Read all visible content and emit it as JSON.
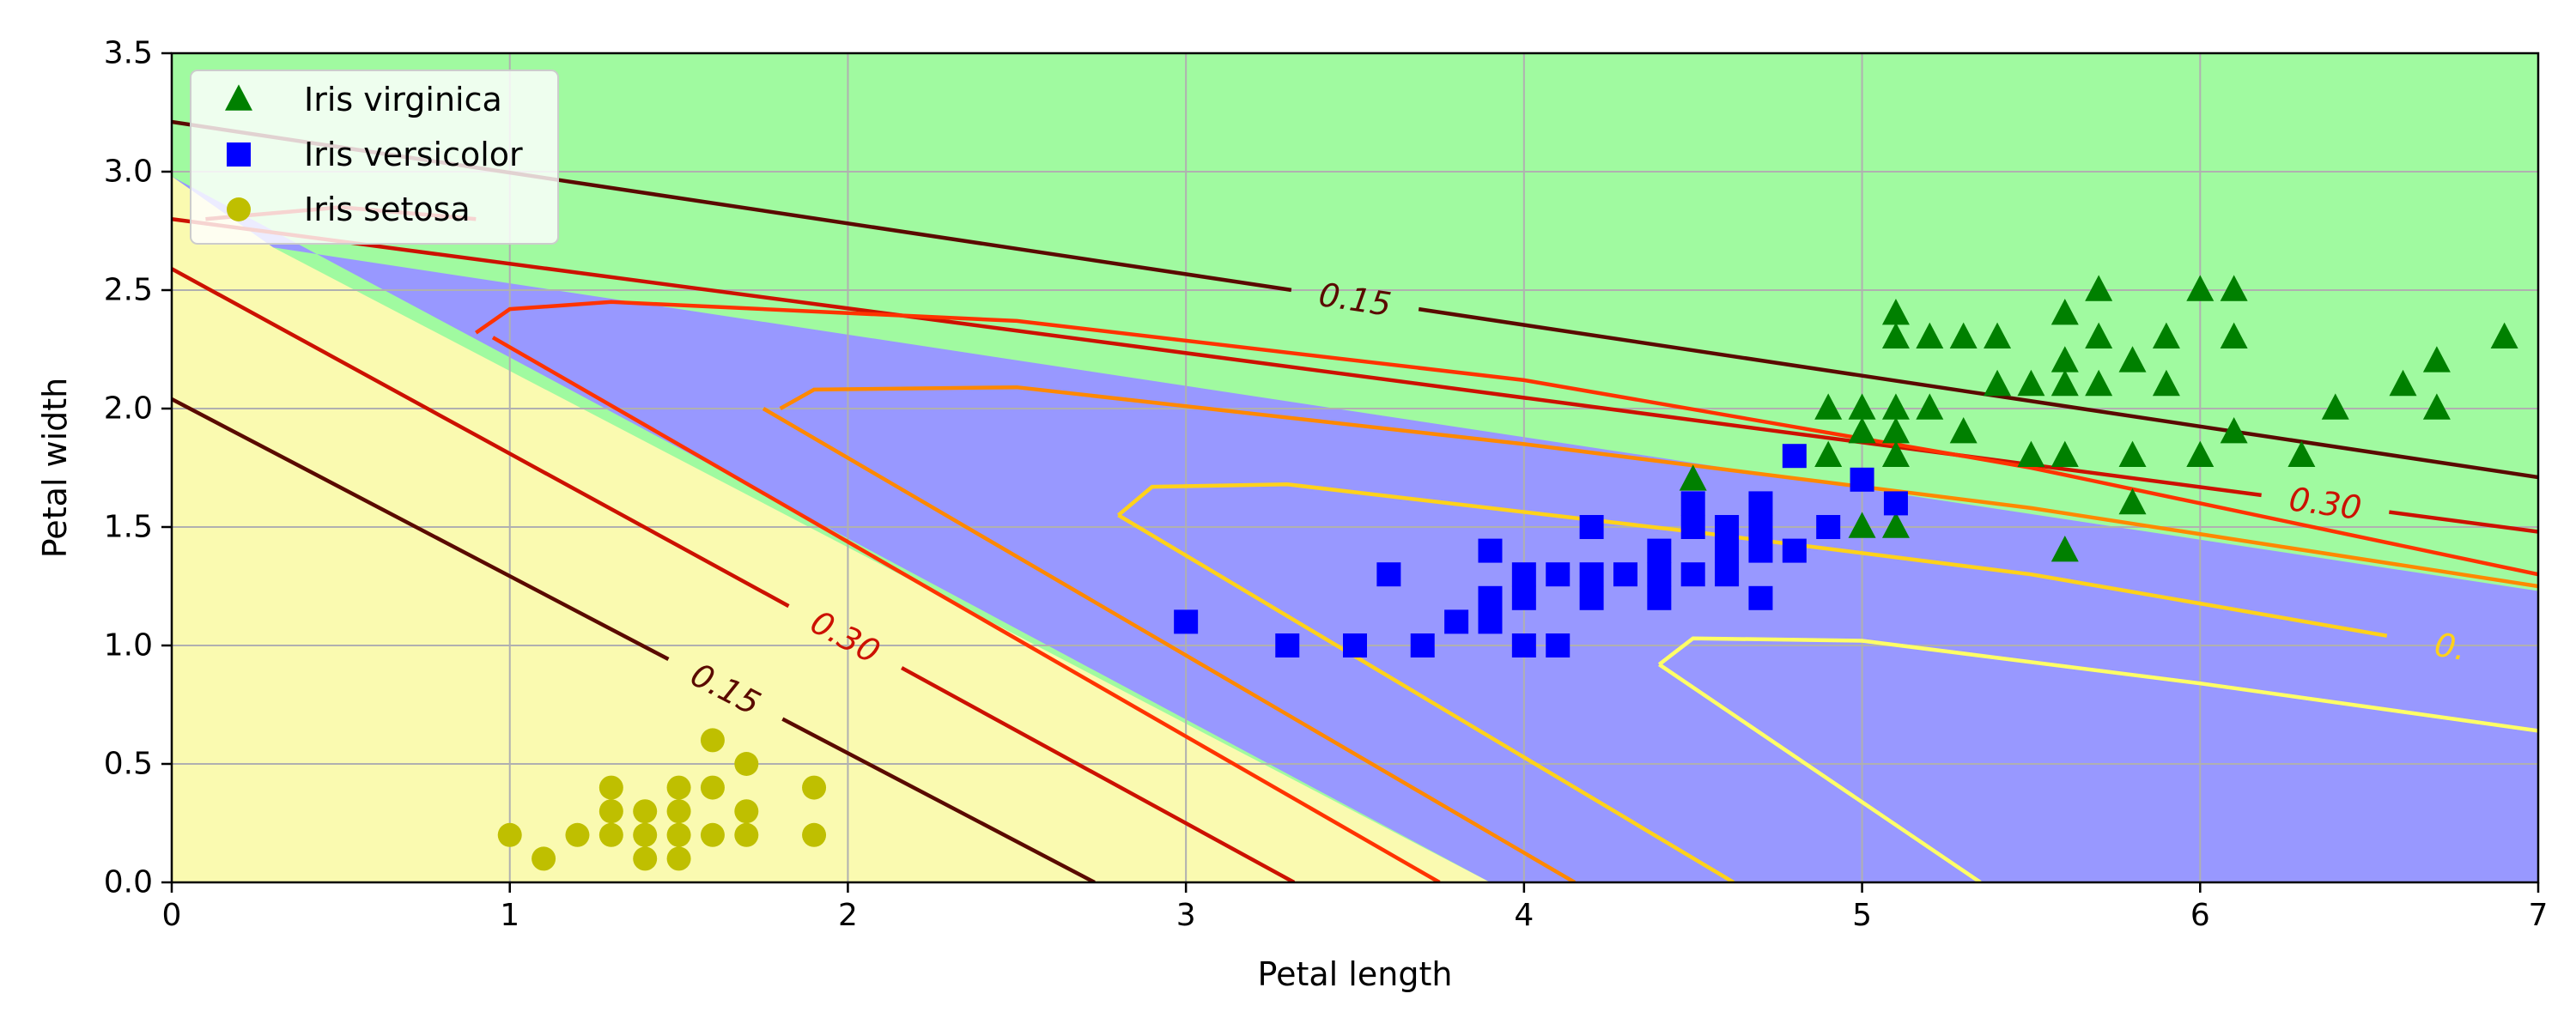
{
  "chart_data": {
    "type": "scatter",
    "title": "",
    "xlabel": "Petal length",
    "ylabel": "Petal width",
    "xlim": [
      0,
      7
    ],
    "ylim": [
      0,
      3.5
    ],
    "xticks": [
      0,
      1,
      2,
      3,
      4,
      5,
      6,
      7
    ],
    "yticks": [
      0.0,
      0.5,
      1.0,
      1.5,
      2.0,
      2.5,
      3.0,
      3.5
    ],
    "xtick_labels": [
      "0",
      "1",
      "2",
      "3",
      "4",
      "5",
      "6",
      "7"
    ],
    "ytick_labels": [
      "0.0",
      "0.5",
      "1.0",
      "1.5",
      "2.0",
      "2.5",
      "3.0",
      "3.5"
    ],
    "grid": true,
    "legend_position": "top-left",
    "regions": {
      "setosa_color": "#fafab0",
      "versicolor_color": "#9898ff",
      "virginica_color": "#a0faa0",
      "setosa_versicolor_boundary": [
        [
          0,
          2.98
        ],
        [
          0.3,
          2.68
        ],
        [
          3.9,
          0.0
        ]
      ],
      "versicolor_virginica_boundary": [
        [
          0.3,
          2.68
        ],
        [
          7,
          1.23
        ]
      ]
    },
    "series": [
      {
        "name": "Iris virginica",
        "marker": "triangle",
        "color": "#008000",
        "points": [
          [
            5.1,
            2.4
          ],
          [
            5.6,
            2.4
          ],
          [
            5.7,
            2.5
          ],
          [
            6.0,
            2.5
          ],
          [
            6.1,
            2.5
          ],
          [
            5.1,
            2.3
          ],
          [
            5.2,
            2.3
          ],
          [
            5.3,
            2.3
          ],
          [
            5.4,
            2.3
          ],
          [
            5.6,
            2.2
          ],
          [
            5.7,
            2.3
          ],
          [
            5.8,
            2.2
          ],
          [
            5.9,
            2.3
          ],
          [
            6.1,
            2.3
          ],
          [
            6.7,
            2.2
          ],
          [
            6.9,
            2.3
          ],
          [
            4.9,
            2.0
          ],
          [
            5.0,
            2.0
          ],
          [
            5.1,
            2.0
          ],
          [
            5.2,
            2.0
          ],
          [
            5.4,
            2.1
          ],
          [
            5.5,
            2.1
          ],
          [
            5.6,
            2.1
          ],
          [
            5.7,
            2.1
          ],
          [
            5.9,
            2.1
          ],
          [
            6.4,
            2.0
          ],
          [
            6.6,
            2.1
          ],
          [
            6.7,
            2.0
          ],
          [
            5.0,
            1.9
          ],
          [
            5.1,
            1.9
          ],
          [
            5.3,
            1.9
          ],
          [
            6.1,
            1.9
          ],
          [
            4.9,
            1.8
          ],
          [
            5.1,
            1.8
          ],
          [
            5.5,
            1.8
          ],
          [
            5.6,
            1.8
          ],
          [
            5.8,
            1.8
          ],
          [
            6.0,
            1.8
          ],
          [
            6.3,
            1.8
          ],
          [
            4.5,
            1.7
          ],
          [
            5.8,
            1.6
          ],
          [
            5.0,
            1.5
          ],
          [
            5.1,
            1.5
          ],
          [
            5.6,
            1.4
          ]
        ]
      },
      {
        "name": "Iris versicolor",
        "marker": "square",
        "color": "#0000ff",
        "points": [
          [
            4.8,
            1.8
          ],
          [
            5.0,
            1.7
          ],
          [
            4.5,
            1.6
          ],
          [
            4.7,
            1.6
          ],
          [
            5.1,
            1.6
          ],
          [
            4.5,
            1.5
          ],
          [
            4.6,
            1.5
          ],
          [
            4.7,
            1.5
          ],
          [
            4.9,
            1.5
          ],
          [
            4.2,
            1.5
          ],
          [
            3.9,
            1.4
          ],
          [
            4.4,
            1.4
          ],
          [
            4.6,
            1.4
          ],
          [
            4.7,
            1.4
          ],
          [
            4.8,
            1.4
          ],
          [
            3.6,
            1.3
          ],
          [
            4.0,
            1.3
          ],
          [
            4.1,
            1.3
          ],
          [
            4.2,
            1.3
          ],
          [
            4.3,
            1.3
          ],
          [
            4.4,
            1.3
          ],
          [
            4.5,
            1.3
          ],
          [
            4.6,
            1.3
          ],
          [
            3.9,
            1.2
          ],
          [
            4.0,
            1.2
          ],
          [
            4.2,
            1.2
          ],
          [
            4.4,
            1.2
          ],
          [
            4.7,
            1.2
          ],
          [
            3.0,
            1.1
          ],
          [
            3.8,
            1.1
          ],
          [
            3.9,
            1.1
          ],
          [
            3.3,
            1.0
          ],
          [
            3.5,
            1.0
          ],
          [
            3.7,
            1.0
          ],
          [
            4.0,
            1.0
          ],
          [
            4.1,
            1.0
          ]
        ]
      },
      {
        "name": "Iris setosa",
        "marker": "circle",
        "color": "#bfbf00",
        "points": [
          [
            1.6,
            0.6
          ],
          [
            1.3,
            0.4
          ],
          [
            1.5,
            0.4
          ],
          [
            1.6,
            0.4
          ],
          [
            1.9,
            0.4
          ],
          [
            1.7,
            0.5
          ],
          [
            1.3,
            0.3
          ],
          [
            1.4,
            0.3
          ],
          [
            1.5,
            0.3
          ],
          [
            1.7,
            0.3
          ],
          [
            1.0,
            0.2
          ],
          [
            1.2,
            0.2
          ],
          [
            1.3,
            0.2
          ],
          [
            1.4,
            0.2
          ],
          [
            1.5,
            0.2
          ],
          [
            1.6,
            0.2
          ],
          [
            1.7,
            0.2
          ],
          [
            1.9,
            0.2
          ],
          [
            1.1,
            0.1
          ],
          [
            1.4,
            0.1
          ],
          [
            1.5,
            0.1
          ]
        ]
      }
    ],
    "contours": [
      {
        "color": "#5a0a00",
        "label": "0.15",
        "points": [
          [
            0,
            3.21
          ],
          [
            7,
            1.71
          ]
        ]
      },
      {
        "color": "#cc1100",
        "label": "0.30",
        "points": [
          [
            0,
            2.8
          ],
          [
            7,
            1.48
          ]
        ]
      },
      {
        "color": "#ff3300",
        "label": "",
        "points": [
          [
            0.9,
            2.32
          ],
          [
            1.0,
            2.42
          ],
          [
            1.3,
            2.45
          ],
          [
            2.5,
            2.37
          ],
          [
            4.0,
            2.12
          ],
          [
            5.5,
            1.75
          ],
          [
            7,
            1.3
          ]
        ]
      },
      {
        "color": "#ff8800",
        "label": "",
        "points": [
          [
            1.8,
            2.0
          ],
          [
            1.9,
            2.08
          ],
          [
            2.5,
            2.09
          ],
          [
            4.0,
            1.85
          ],
          [
            5.5,
            1.58
          ],
          [
            7,
            1.25
          ]
        ]
      },
      {
        "color": "#ffd21a",
        "label": "0.",
        "points": [
          [
            2.8,
            1.55
          ],
          [
            2.9,
            1.67
          ],
          [
            3.3,
            1.68
          ],
          [
            4.5,
            1.48
          ],
          [
            5.5,
            1.3
          ],
          [
            6.8,
            0.98
          ]
        ]
      },
      {
        "color": "#ffff66",
        "label": "",
        "points": [
          [
            4.4,
            0.92
          ],
          [
            4.5,
            1.03
          ],
          [
            5.0,
            1.02
          ],
          [
            6.0,
            0.84
          ],
          [
            7,
            0.64
          ]
        ]
      },
      {
        "color": "#cc1100",
        "label": "",
        "points": [
          [
            0.1,
            2.8
          ],
          [
            0.5,
            2.85
          ],
          [
            0.9,
            2.8
          ]
        ]
      },
      {
        "color": "#5a0a00",
        "label": "0.15",
        "points": [
          [
            0,
            2.04
          ],
          [
            2.73,
            0.0
          ]
        ]
      },
      {
        "color": "#cc1100",
        "label": "0.30",
        "points": [
          [
            0,
            2.59
          ],
          [
            3.32,
            0.0
          ]
        ]
      },
      {
        "color": "#ff3300",
        "label": "",
        "points": [
          [
            0.95,
            2.3
          ],
          [
            3.75,
            0.0
          ]
        ]
      },
      {
        "color": "#ff8800",
        "label": "",
        "points": [
          [
            1.75,
            2.0
          ],
          [
            4.15,
            0.0
          ]
        ]
      },
      {
        "color": "#ffd21a",
        "label": "",
        "points": [
          [
            2.8,
            1.55
          ],
          [
            4.62,
            0.0
          ]
        ]
      },
      {
        "color": "#ffff66",
        "label": "",
        "points": [
          [
            4.4,
            0.92
          ],
          [
            5.35,
            0.0
          ]
        ]
      }
    ]
  }
}
